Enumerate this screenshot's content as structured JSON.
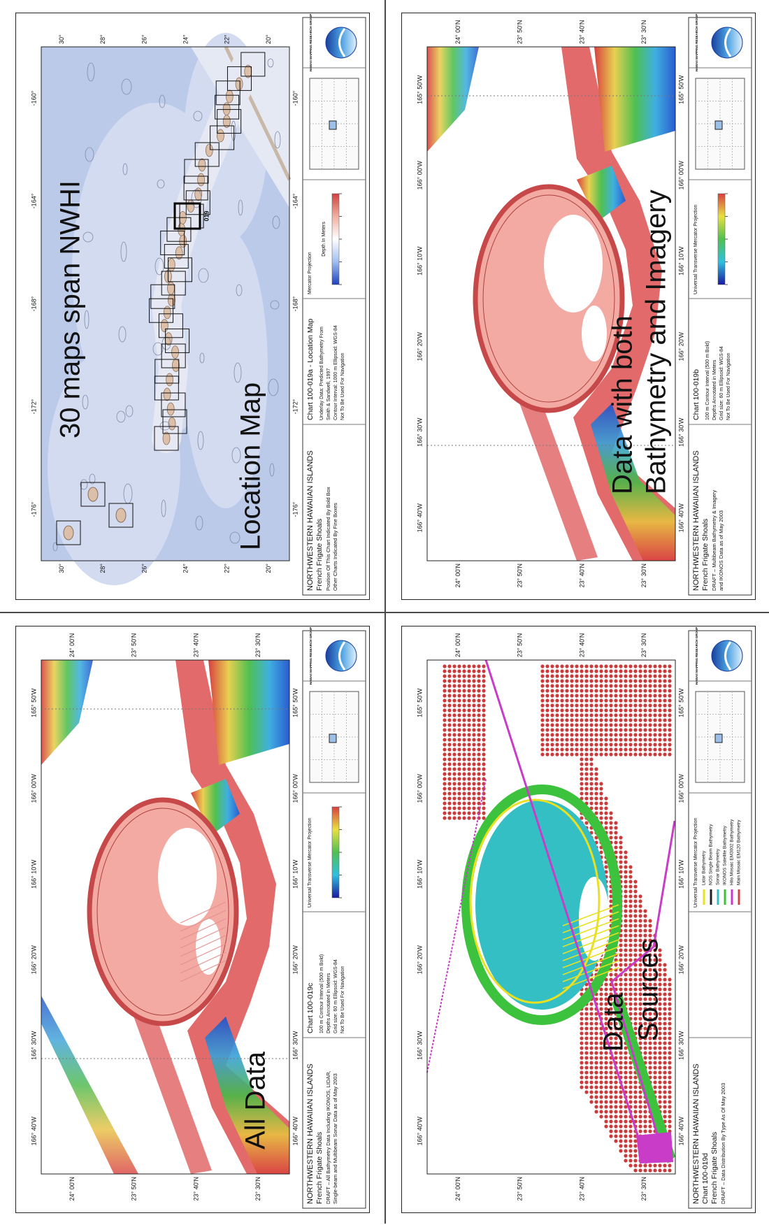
{
  "logo_text": "HAWAII MAPPING RESEARCH GROUP",
  "panels": [
    {
      "overlay": [
        "30 maps span NWHI",
        "Location Map"
      ],
      "region": "NORTHWESTERN HAWAIIAN ISLANDS",
      "place": "French Frigate Shoals",
      "notes": [
        "Position Of This Chart Indicated By Bold Box",
        "Other Charts Indicated By Fine Boxes"
      ],
      "chart": "Chart 100-019a - Location Map",
      "chart_notes": [
        "Underlay Data: Predicted Bathymetry From",
        "Smith & Sandwell, 1997",
        "Contour Interval: 1000 m   Ellipsoid: WGS-84",
        "Not To Be Used For Navigation"
      ],
      "projection": "Mercator Projection",
      "legend_title": "Depth In Meters",
      "box_label": "019",
      "lon_labels": [
        "-176°",
        "-172°",
        "-168°",
        "-164°",
        "-160°"
      ],
      "lat_labels": [
        "20°",
        "22°",
        "24°",
        "26°",
        "28°",
        "30°"
      ]
    },
    {
      "overlay": [
        "Data with both",
        "Bathymetry and Imagery"
      ],
      "region": "NORTHWESTERN HAWAIIAN ISLANDS",
      "place": "French Frigate Shoals",
      "notes": [
        "DRAFT – Multibeam Bathymetry & Imagery",
        "and IKONOS Data as of May 2003"
      ],
      "chart": "Chart 100-019b",
      "chart_notes": [
        "100 m Contour Interval (500 m Bold)",
        "Depths Annotated in Meters",
        "Grid size: 60 m   Ellipsoid: WGS-84",
        "Not To Be Used For Navigation"
      ],
      "projection": "Universal Transverse Mercator Projection",
      "lon_labels": [
        "166° 40'W",
        "166° 30'W",
        "166° 20'W",
        "166° 10'W",
        "166° 00'W",
        "165° 50'W"
      ],
      "lat_labels": [
        "23° 30'N",
        "23° 40'N",
        "23° 50'N",
        "24° 00'N"
      ]
    },
    {
      "overlay": [
        "All Data"
      ],
      "region": "NORTHWESTERN HAWAIIAN ISLANDS",
      "place": "French Frigate Shoals",
      "notes": [
        "DRAFT – All Bathymetry Data Including IKONOS, LIDAR,",
        "Single-beam and Multibeam Sonar Data as of May 2003"
      ],
      "chart": "Chart 100-019c",
      "chart_notes": [
        "100 m Contour Interval (500 m Bold)",
        "Depths Annotated in Meters",
        "Grid size: 60 m   Ellipsoid: WGS-84",
        "Not To Be Used For Navigation"
      ],
      "projection": "Universal Transverse Mercator Projection",
      "lon_labels": [
        "166° 40'W",
        "166° 30'W",
        "166° 20'W",
        "166° 10'W",
        "166° 00'W",
        "165° 50'W"
      ],
      "lat_labels": [
        "23° 30'N",
        "23° 40'N",
        "23° 50'N",
        "24° 00'N"
      ]
    },
    {
      "overlay": [
        "Data",
        "Sources"
      ],
      "region": "NORTHWESTERN HAWAIIAN ISLANDS",
      "chart": "Chart 100-019d",
      "place": "French Frigate Shoals",
      "notes": [
        "DRAFT – Data Distribution By Type As Of May 2003"
      ],
      "projection": "Universal Transverse Mercator Projection",
      "legend": [
        {
          "name": "Lidar Bathymetry",
          "color": "#e8e020"
        },
        {
          "name": "NOS Single Beam Bathymetry",
          "color": "#222222"
        },
        {
          "name": "Sonar Bathymetry",
          "color": "#34bfc4"
        },
        {
          "name": "IKONOS Satellite Bathymetry",
          "color": "#3cc23c"
        },
        {
          "name": "Hilo Mosaic EM3002 Bathymetry",
          "color": "#c83cc8"
        },
        {
          "name": "Main Mosaic EM120 Bathymetry",
          "color": "#cc4444"
        }
      ],
      "lon_labels": [
        "166° 40'W",
        "166° 30'W",
        "166° 20'W",
        "166° 10'W",
        "166° 00'W",
        "165° 50'W"
      ],
      "lat_labels": [
        "23° 30'N",
        "23° 40'N",
        "23° 50'N",
        "24° 00'N"
      ]
    }
  ]
}
